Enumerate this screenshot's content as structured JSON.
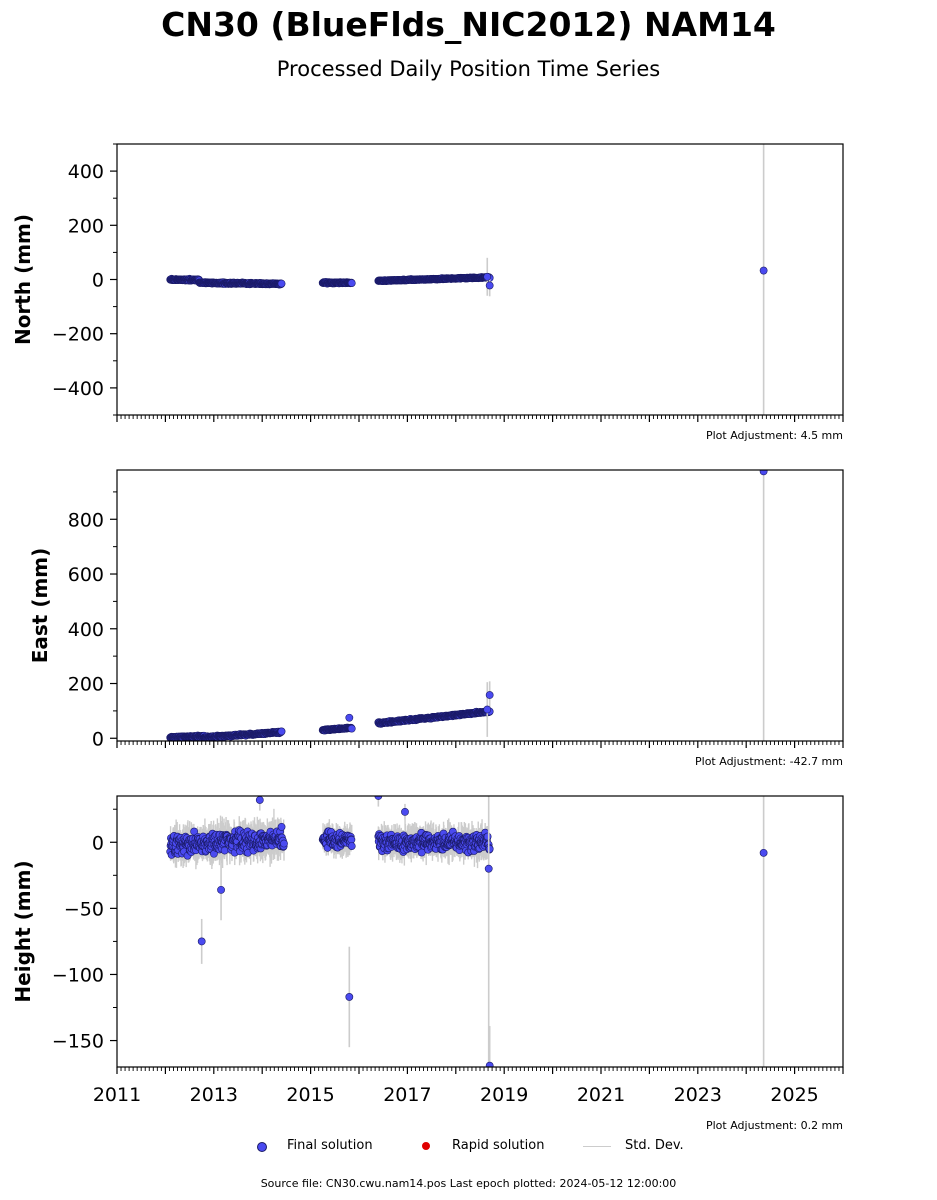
{
  "figure": {
    "title": "CN30 (BlueFlds_NIC2012) NAM14",
    "subtitle": "Processed Daily Position Time Series",
    "source_note": "Source file: CN30.cwu.nam14.pos  Last epoch plotted: 2024-05-12 12:00:00"
  },
  "legend": {
    "final": "Final solution",
    "rapid": "Rapid solution",
    "std": "Std. Dev."
  },
  "colors": {
    "final": "#4a4af0",
    "final_edge": "#1a1a66",
    "rapid": "#e00000",
    "std": "#cccccc"
  },
  "chart_data": [
    {
      "type": "scatter",
      "ylabel": "North (mm)",
      "ylim": [
        -500,
        500
      ],
      "yticks": [
        -400,
        -200,
        0,
        200,
        400
      ],
      "xlim": [
        2011,
        2026
      ],
      "adjustment": "Plot Adjustment: 4.5 mm",
      "segments": [
        {
          "x": [
            2012.1,
            2012.7
          ],
          "y": [
            0,
            -2
          ],
          "spread": 4
        },
        {
          "x": [
            2012.7,
            2014.4
          ],
          "y": [
            -12,
            -16
          ],
          "spread": 4
        },
        {
          "x": [
            2015.25,
            2015.85
          ],
          "y": [
            -12,
            -12
          ],
          "spread": 3
        },
        {
          "x": [
            2016.4,
            2018.7
          ],
          "y": [
            -5,
            8
          ],
          "spread": 3
        }
      ],
      "outliers": [
        {
          "x": 2018.7,
          "y": -22,
          "err": 40
        },
        {
          "x": 2018.65,
          "y": 10,
          "err": 70
        },
        {
          "x": 2024.36,
          "y": 33,
          "err": 900
        }
      ]
    },
    {
      "type": "scatter",
      "ylabel": "East (mm)",
      "ylim": [
        -10,
        980
      ],
      "yticks": [
        0,
        200,
        400,
        600,
        800
      ],
      "xlim": [
        2011,
        2026
      ],
      "adjustment": "Plot Adjustment: -42.7 mm",
      "segments": [
        {
          "x": [
            2012.1,
            2012.8
          ],
          "y": [
            2,
            8
          ],
          "spread": 4
        },
        {
          "x": [
            2012.8,
            2014.4
          ],
          "y": [
            3,
            22
          ],
          "spread": 4
        },
        {
          "x": [
            2015.25,
            2015.85
          ],
          "y": [
            30,
            38
          ],
          "spread": 3
        },
        {
          "x": [
            2016.4,
            2018.7
          ],
          "y": [
            55,
            98
          ],
          "spread": 4
        }
      ],
      "outliers": [
        {
          "x": 2015.8,
          "y": 75,
          "err": 8
        },
        {
          "x": 2018.7,
          "y": 158,
          "err": 50
        },
        {
          "x": 2018.65,
          "y": 105,
          "err": 100
        },
        {
          "x": 2024.36,
          "y": 975,
          "err": 1000
        }
      ]
    },
    {
      "type": "scatter",
      "ylabel": "Height (mm)",
      "ylim": [
        -170,
        35
      ],
      "yticks": [
        -150,
        -100,
        -50,
        0
      ],
      "xlim": [
        2011,
        2026
      ],
      "xticks": [
        2011,
        2013,
        2015,
        2017,
        2019,
        2021,
        2023,
        2025
      ],
      "adjustment": "Plot Adjustment: 0.2 mm",
      "segments": [
        {
          "x": [
            2012.1,
            2014.45
          ],
          "y": [
            -2,
            2
          ],
          "spread": 10
        },
        {
          "x": [
            2015.25,
            2015.85
          ],
          "y": [
            2,
            2
          ],
          "spread": 8
        },
        {
          "x": [
            2016.4,
            2018.7
          ],
          "y": [
            0,
            0
          ],
          "spread": 9
        }
      ],
      "outliers": [
        {
          "x": 2012.75,
          "y": -75,
          "err": 17
        },
        {
          "x": 2013.15,
          "y": -36,
          "err": 23
        },
        {
          "x": 2013.95,
          "y": 32,
          "err": 8
        },
        {
          "x": 2015.8,
          "y": -117,
          "err": 38
        },
        {
          "x": 2016.4,
          "y": 35,
          "err": 8
        },
        {
          "x": 2016.95,
          "y": 23,
          "err": 6
        },
        {
          "x": 2018.7,
          "y": -169,
          "err": 30
        },
        {
          "x": 2018.68,
          "y": -20,
          "err": 200
        },
        {
          "x": 2024.36,
          "y": -8,
          "err": 250
        }
      ]
    }
  ]
}
